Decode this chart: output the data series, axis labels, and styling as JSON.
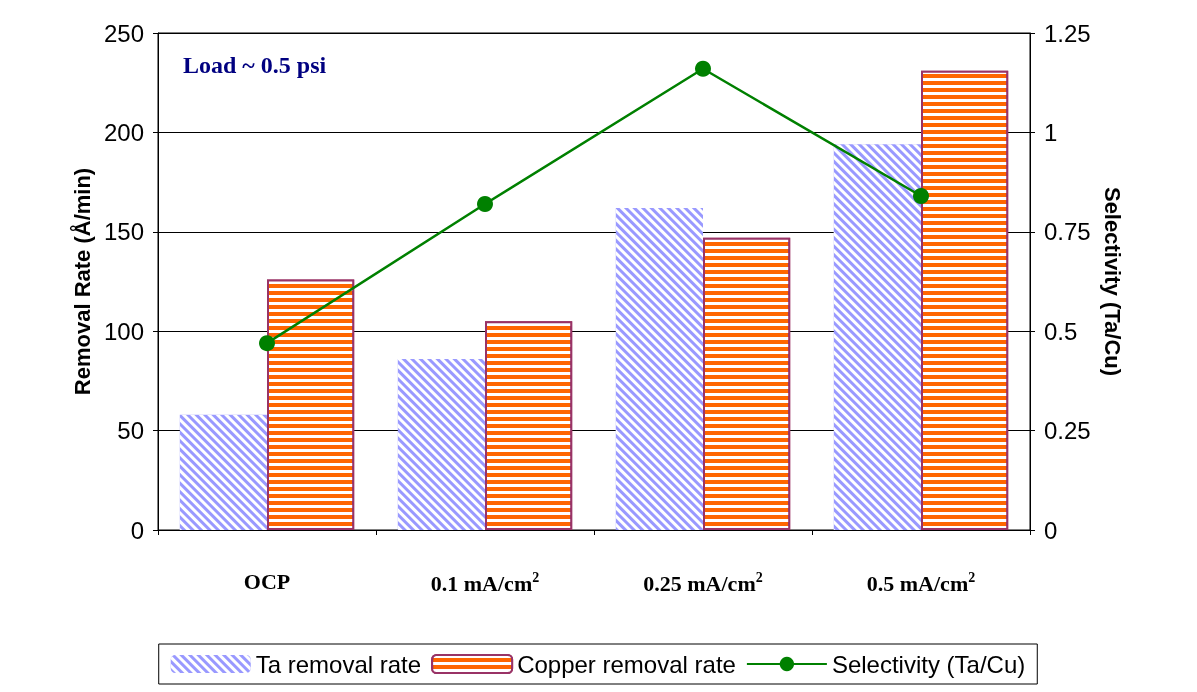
{
  "chart_data": {
    "type": "bar",
    "categories": [
      "OCP",
      "0.1 mA/cm$^{2}$",
      "0.25 mA/cm$^{2}$",
      "0.5 mA/cm$^{2}$"
    ],
    "ylabel": "Removal Rate (Å/min)",
    "y2label": "Selectivity (Ta/Cu)",
    "ylim": [
      0,
      250
    ],
    "yticks": [
      0,
      50,
      100,
      150,
      200,
      250
    ],
    "y2lim": [
      0,
      1.25
    ],
    "y2ticks": [
      0,
      0.25,
      0.5,
      0.75,
      1,
      1.25
    ],
    "grid": "y",
    "legend": "bottom",
    "annotations": [
      "Load ~ 0.5 psi"
    ],
    "series": [
      {
        "name": "Ta removal rate",
        "color": "#9999ff",
        "values": [
          58,
          86,
          162,
          194
        ]
      },
      {
        "name": "Copper removal rate",
        "color": "#ff6600",
        "values": [
          126,
          105,
          147,
          231
        ]
      },
      {
        "name": "Selectivity (Ta/Cu)",
        "type": "line",
        "axis": "y2",
        "color": "#008000",
        "marker": "circle",
        "values": [
          0.47,
          0.82,
          1.16,
          0.84
        ]
      }
    ]
  }
}
